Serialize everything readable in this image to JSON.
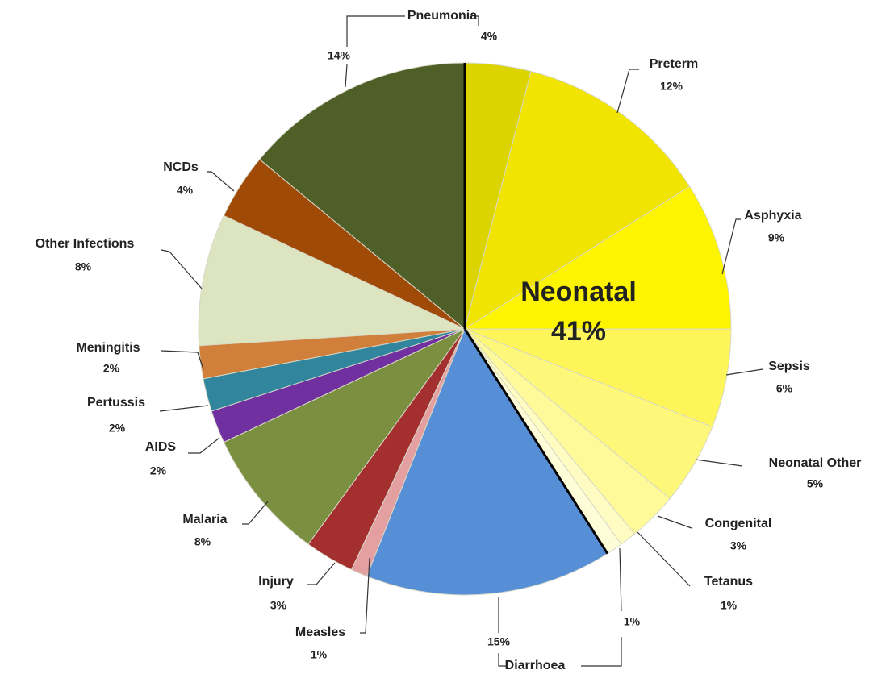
{
  "chart_data": {
    "type": "pie",
    "categories": [
      null,
      "Preterm",
      "Asphyxia",
      "Sepsis",
      "Neonatal Other",
      "Congenital",
      "Tetanus",
      null,
      "Diarrhoea",
      "Measles",
      "Injury",
      "Malaria",
      "AIDS",
      "Pertussis",
      "Meningitis",
      "Other Infections",
      "NCDs",
      "Pneumonia"
    ],
    "values": [
      4,
      12,
      9,
      6,
      5,
      3,
      1,
      1,
      15,
      1,
      3,
      8,
      2,
      2,
      2,
      8,
      4,
      14
    ],
    "value_labels": [
      "4%",
      "12%",
      "9%",
      "6%",
      "5%",
      "3%",
      "1%",
      "1%",
      "15%",
      "1%",
      "3%",
      "8%",
      "2%",
      "2%",
      "2%",
      "8%",
      "4%",
      "14%"
    ],
    "colors": [
      "#dcd400",
      "#f0e400",
      "#fcf400",
      "#fdf55a",
      "#fef87a",
      "#fefa9a",
      "#fefcc0",
      "#fefdd8",
      "#568fd6",
      "#e4a0a0",
      "#a3302e",
      "#7b8f40",
      "#7030a0",
      "#31859c",
      "#d0803a",
      "#dde4c0",
      "#a04a08",
      "#4f5f28"
    ],
    "group": {
      "label": "Neonatal",
      "value": 41,
      "value_label": "41%"
    }
  }
}
